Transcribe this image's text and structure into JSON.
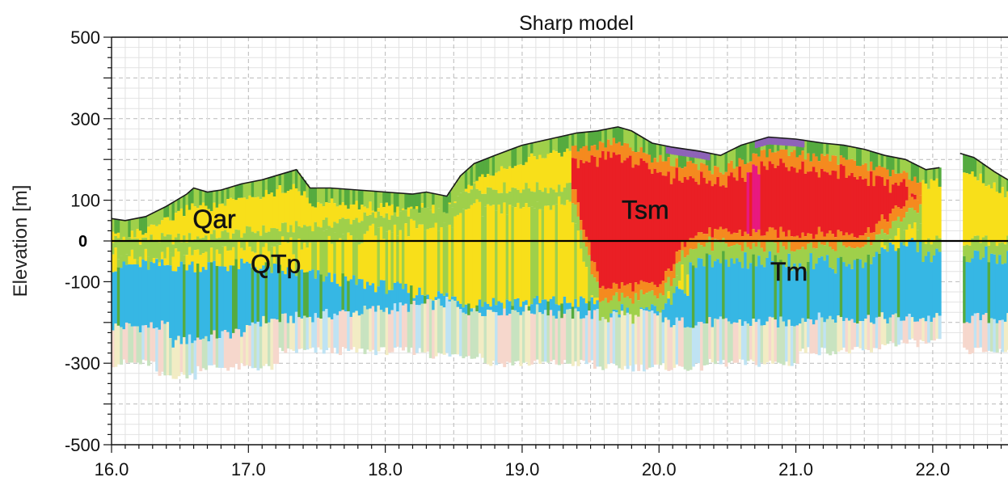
{
  "chart_data": {
    "type": "heatmap",
    "title": "Sharp model",
    "xlabel": "",
    "ylabel": "Elevation [m]",
    "xlim": [
      16.0,
      22.55
    ],
    "ylim": [
      -500,
      500
    ],
    "x_ticks": [
      "16.0",
      "17.0",
      "18.0",
      "19.0",
      "20.0",
      "21.0",
      "22.0"
    ],
    "x_tick_values": [
      16.0,
      17.0,
      18.0,
      19.0,
      20.0,
      21.0,
      22.0
    ],
    "y_ticks": [
      "500",
      "300",
      "100",
      "-100",
      "-300",
      "-500"
    ],
    "y_tick_values": [
      500,
      300,
      100,
      -100,
      -300,
      -500
    ],
    "grid": true,
    "reference_line": {
      "y": 0,
      "label": "0"
    },
    "topography": {
      "x": [
        16.0,
        16.1,
        16.25,
        16.4,
        16.55,
        16.6,
        16.7,
        16.8,
        16.95,
        17.1,
        17.25,
        17.35,
        17.45,
        17.6,
        17.8,
        18.0,
        18.2,
        18.3,
        18.45,
        18.55,
        18.65,
        18.8,
        19.0,
        19.2,
        19.4,
        19.55,
        19.7,
        19.8,
        19.95,
        20.1,
        20.3,
        20.45,
        20.6,
        20.8,
        21.0,
        21.2,
        21.35,
        21.5,
        21.65,
        21.8,
        21.95,
        22.05,
        22.2,
        22.3,
        22.45,
        22.55
      ],
      "y": [
        55,
        50,
        60,
        85,
        115,
        130,
        120,
        125,
        140,
        150,
        165,
        175,
        130,
        130,
        125,
        120,
        115,
        120,
        110,
        160,
        190,
        210,
        235,
        250,
        265,
        270,
        280,
        270,
        240,
        230,
        220,
        210,
        235,
        255,
        250,
        240,
        235,
        225,
        210,
        200,
        175,
        180,
        215,
        205,
        170,
        150
      ]
    },
    "gap": [
      22.05,
      22.2
    ],
    "annotations": [
      {
        "text": "Qar",
        "x": 16.75,
        "y": 32
      },
      {
        "text": "QTp",
        "x": 17.2,
        "y": -78
      },
      {
        "text": "Tsm",
        "x": 19.9,
        "y": 55
      },
      {
        "text": "Tm",
        "x": 20.95,
        "y": -97
      }
    ],
    "colors": {
      "red": "#ea1f25",
      "orange": "#f58a1f",
      "yellow": "#f8df1a",
      "green": "#55ab3f",
      "light_green": "#9fd04a",
      "blue": "#36b7e4",
      "pale_yellow": "#f2ecc4",
      "pale_blue": "#bfe3f3",
      "pale_green": "#c8e3c0",
      "pale_pink": "#f6d7cc",
      "purple": "#8e63b8",
      "magenta": "#e8197f"
    }
  }
}
